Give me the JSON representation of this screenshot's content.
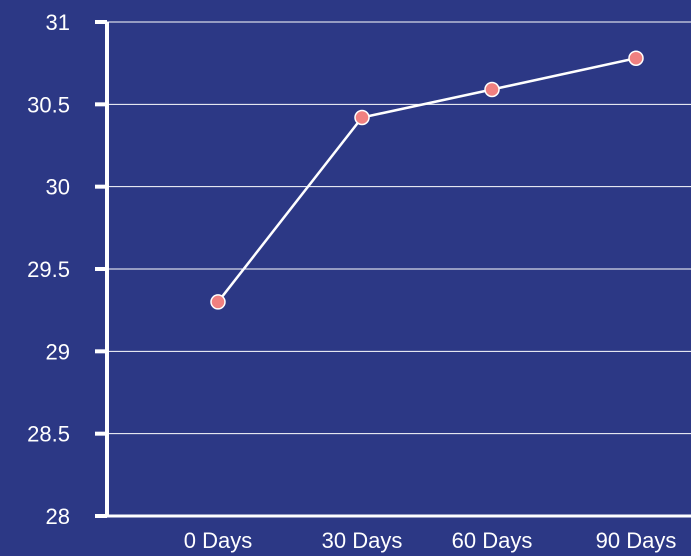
{
  "colors": {
    "background": "#2C3885",
    "grid": "#FFFFFF",
    "axis": "#FFFFFF",
    "line": "#FFFFFF",
    "marker_fill": "#F08080",
    "marker_stroke": "#FFFFFF",
    "text": "#FFFFFF"
  },
  "chart_data": {
    "type": "line",
    "categories": [
      "0 Days",
      "30 Days",
      "60 Days",
      "90 Days"
    ],
    "series": [
      {
        "values": [
          29.3,
          30.42,
          30.59,
          30.78
        ]
      }
    ],
    "ylim": [
      28,
      31
    ],
    "yticks": [
      "28",
      "28.5",
      "29",
      "29.5",
      "30",
      "30.5",
      "31"
    ],
    "grid": true,
    "legend": "none"
  }
}
